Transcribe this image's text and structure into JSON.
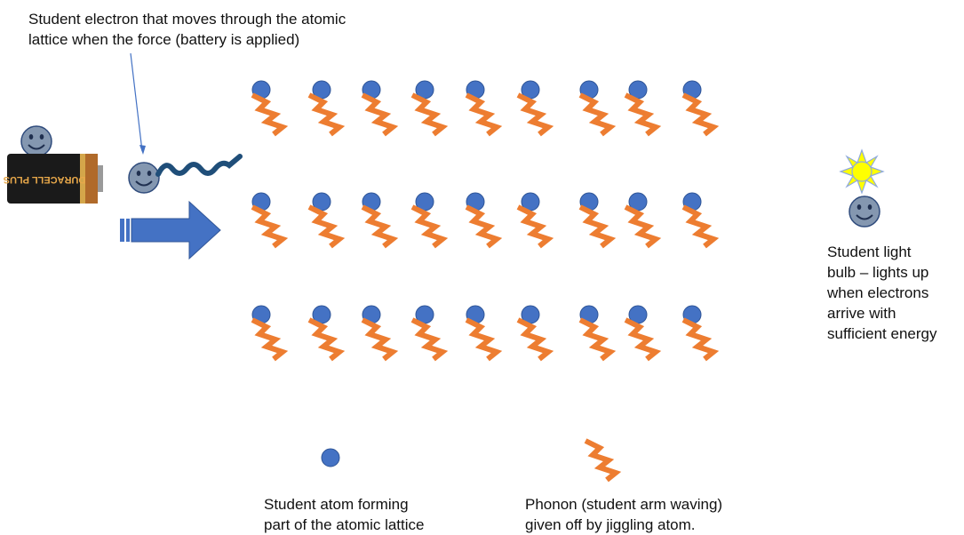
{
  "electron_caption": [
    "Student electron that moves through the atomic",
    "lattice when  the force (battery is applied)"
  ],
  "bulb_caption": [
    "Student light",
    "bulb – lights up",
    "when electrons",
    "arrive with",
    "sufficient energy"
  ],
  "legend": {
    "atom_caption": [
      "Student atom forming",
      "part of the atomic lattice"
    ],
    "phonon_caption": [
      "Phonon (student arm waving)",
      "given off by jiggling atom."
    ]
  },
  "battery_label": "DURACELL PLUS",
  "lattice": {
    "rows": 3,
    "cols": 9
  },
  "colors": {
    "atom": "#4472c4",
    "phonon": "#ed7d31",
    "face": "#8497b0",
    "electron_wave": "#1f4e79",
    "bulb": "#ffff00",
    "arrow": "#4472c4"
  },
  "icons": [
    "smiley-face-icon",
    "battery-icon",
    "wave-icon",
    "right-arrow-icon",
    "sun-icon"
  ]
}
